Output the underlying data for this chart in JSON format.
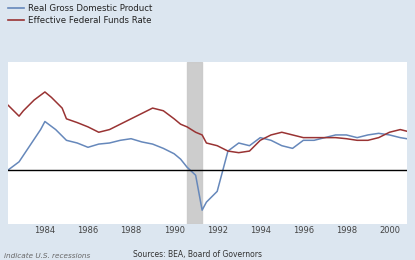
{
  "legend": [
    "Real Gross Domestic Product",
    "Effective Federal Funds Rate"
  ],
  "legend_colors": [
    "#6688bb",
    "#993333"
  ],
  "background_color": "#dce6f0",
  "plot_bg_color": "#ffffff",
  "recession_shades": [
    [
      1990.6,
      1991.3
    ]
  ],
  "xlabel_ticks": [
    1984,
    1986,
    1988,
    1990,
    1992,
    1994,
    1996,
    1998,
    2000
  ],
  "xmin": 1982.3,
  "xmax": 2000.8,
  "ymin": -10,
  "ymax": 20,
  "footnote_left": "indicate U.S. recessions",
  "footnote_center": "Sources: BEA, Board of Governors",
  "gdp_x": [
    1982.3,
    1982.8,
    1983.3,
    1983.8,
    1984.0,
    1984.5,
    1985.0,
    1985.5,
    1986.0,
    1986.5,
    1987.0,
    1987.5,
    1988.0,
    1988.5,
    1989.0,
    1989.5,
    1990.0,
    1990.3,
    1990.6,
    1991.0,
    1991.3,
    1991.5,
    1992.0,
    1992.5,
    1993.0,
    1993.5,
    1994.0,
    1994.5,
    1995.0,
    1995.5,
    1996.0,
    1996.5,
    1997.0,
    1997.5,
    1998.0,
    1998.5,
    1999.0,
    1999.5,
    2000.0,
    2000.5,
    2000.8
  ],
  "gdp_y": [
    0.0,
    1.5,
    4.5,
    7.5,
    9.0,
    7.5,
    5.5,
    5.0,
    4.2,
    4.8,
    5.0,
    5.5,
    5.8,
    5.2,
    4.8,
    4.0,
    3.0,
    2.0,
    0.5,
    -1.0,
    -7.5,
    -6.0,
    -4.0,
    3.5,
    5.0,
    4.5,
    6.0,
    5.5,
    4.5,
    4.0,
    5.5,
    5.5,
    6.0,
    6.5,
    6.5,
    6.0,
    6.5,
    6.8,
    6.5,
    6.0,
    5.8
  ],
  "ffr_x": [
    1982.3,
    1982.8,
    1983.0,
    1983.5,
    1984.0,
    1984.3,
    1984.8,
    1985.0,
    1985.5,
    1986.0,
    1986.5,
    1987.0,
    1987.5,
    1988.0,
    1988.5,
    1989.0,
    1989.5,
    1990.0,
    1990.3,
    1990.6,
    1991.0,
    1991.3,
    1991.5,
    1992.0,
    1992.5,
    1993.0,
    1993.5,
    1994.0,
    1994.5,
    1995.0,
    1995.5,
    1996.0,
    1996.5,
    1997.0,
    1997.5,
    1998.0,
    1998.5,
    1999.0,
    1999.5,
    2000.0,
    2000.5,
    2000.8
  ],
  "ffr_y": [
    12.0,
    10.0,
    11.0,
    13.0,
    14.5,
    13.5,
    11.5,
    9.5,
    8.8,
    8.0,
    7.0,
    7.5,
    8.5,
    9.5,
    10.5,
    11.5,
    11.0,
    9.5,
    8.5,
    8.0,
    7.0,
    6.5,
    5.0,
    4.5,
    3.5,
    3.2,
    3.5,
    5.5,
    6.5,
    7.0,
    6.5,
    6.0,
    6.0,
    6.0,
    6.0,
    5.8,
    5.5,
    5.5,
    6.0,
    7.0,
    7.5,
    7.2
  ]
}
